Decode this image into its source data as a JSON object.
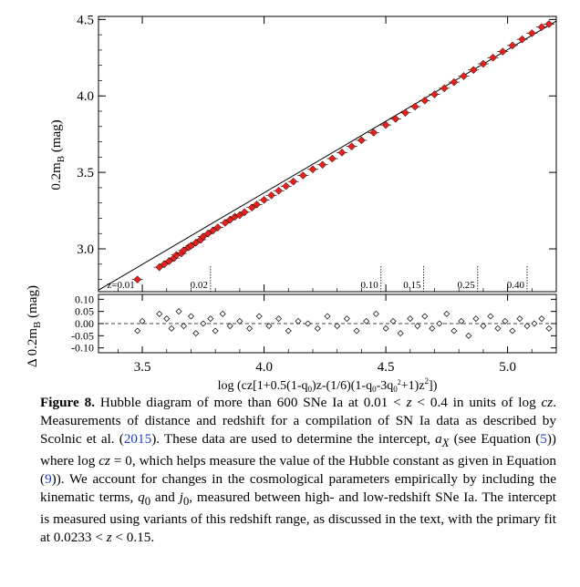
{
  "chart_data": [
    {
      "type": "scatter",
      "ylabel": "0.2m",
      "ylabel_sub": "B",
      "ylabel_unit": " (mag)",
      "xlim": [
        3.32,
        5.2
      ],
      "ylim": [
        2.72,
        4.52
      ],
      "yticks": [
        3.0,
        3.5,
        4.0,
        4.5
      ],
      "yticklabels": [
        "3.0",
        "3.5",
        "4.0",
        "4.5"
      ],
      "fit_line": {
        "x": [
          3.32,
          5.2
        ],
        "y": [
          2.73,
          4.49
        ]
      },
      "redshift_markers": [
        {
          "label": "z=0.01",
          "x": 3.48
        },
        {
          "label": "0.02",
          "x": 3.78
        },
        {
          "label": "0.10",
          "x": 4.48
        },
        {
          "label": "0.15",
          "x": 4.655
        },
        {
          "label": "0.25",
          "x": 4.877
        },
        {
          "label": "0.40",
          "x": 5.08
        }
      ],
      "marker_color": "#e8201c",
      "series": [
        {
          "points": [
            [
              3.48,
              2.8
            ],
            [
              3.57,
              2.88
            ],
            [
              3.59,
              2.9
            ],
            [
              3.61,
              2.92
            ],
            [
              3.63,
              2.94
            ],
            [
              3.64,
              2.96
            ],
            [
              3.66,
              2.97
            ],
            [
              3.67,
              2.99
            ],
            [
              3.69,
              3.01
            ],
            [
              3.7,
              3.02
            ],
            [
              3.72,
              3.04
            ],
            [
              3.74,
              3.06
            ],
            [
              3.75,
              3.08
            ],
            [
              3.77,
              3.1
            ],
            [
              3.79,
              3.12
            ],
            [
              3.81,
              3.14
            ],
            [
              3.84,
              3.17
            ],
            [
              3.86,
              3.19
            ],
            [
              3.88,
              3.21
            ],
            [
              3.9,
              3.22
            ],
            [
              3.92,
              3.24
            ],
            [
              3.95,
              3.27
            ],
            [
              3.97,
              3.29
            ],
            [
              4.0,
              3.32
            ],
            [
              4.03,
              3.35
            ],
            [
              4.06,
              3.38
            ],
            [
              4.09,
              3.41
            ],
            [
              4.12,
              3.44
            ],
            [
              4.16,
              3.48
            ],
            [
              4.2,
              3.52
            ],
            [
              4.24,
              3.55
            ],
            [
              4.28,
              3.59
            ],
            [
              4.32,
              3.63
            ],
            [
              4.36,
              3.67
            ],
            [
              4.4,
              3.71
            ],
            [
              4.45,
              3.76
            ],
            [
              4.5,
              3.81
            ],
            [
              4.54,
              3.85
            ],
            [
              4.58,
              3.89
            ],
            [
              4.62,
              3.93
            ],
            [
              4.66,
              3.97
            ],
            [
              4.7,
              4.01
            ],
            [
              4.74,
              4.05
            ],
            [
              4.78,
              4.09
            ],
            [
              4.82,
              4.13
            ],
            [
              4.86,
              4.17
            ],
            [
              4.9,
              4.21
            ],
            [
              4.94,
              4.25
            ],
            [
              4.98,
              4.29
            ],
            [
              5.02,
              4.33
            ],
            [
              5.06,
              4.37
            ],
            [
              5.1,
              4.41
            ],
            [
              5.14,
              4.45
            ],
            [
              5.17,
              4.47
            ]
          ]
        }
      ]
    },
    {
      "type": "scatter",
      "ylabel": "Δ 0.2m",
      "ylabel_sub": "B",
      "ylabel_unit": " (mag)",
      "xlabel": "log (cz[1+0.5(1-q",
      "xlabel_sub1": "0",
      "xlabel_mid": ")z-(1/6)(1-q",
      "xlabel_sub2": "0",
      "xlabel_mid2": "-3q",
      "xlabel_sub3": "0",
      "xlabel_sup3": "2",
      "xlabel_end": "+1)z",
      "xlabel_sup_end": "2",
      "xlabel_close": "])",
      "xlim": [
        3.32,
        5.2
      ],
      "ylim": [
        -0.12,
        0.12
      ],
      "xticks": [
        3.5,
        4.0,
        4.5,
        5.0
      ],
      "xticklabels": [
        "3.5",
        "4.0",
        "4.5",
        "5.0"
      ],
      "yticks": [
        -0.1,
        -0.05,
        0.0,
        0.05,
        0.1
      ],
      "yticklabels": [
        "-0.10",
        "-0.05",
        "0.00",
        "0.05",
        "0.10"
      ],
      "zero_line": true,
      "series": [
        {
          "points": [
            [
              3.48,
              -0.03
            ],
            [
              3.5,
              0.01
            ],
            [
              3.57,
              0.04
            ],
            [
              3.6,
              0.02
            ],
            [
              3.62,
              -0.02
            ],
            [
              3.65,
              0.05
            ],
            [
              3.67,
              -0.01
            ],
            [
              3.7,
              0.03
            ],
            [
              3.72,
              -0.04
            ],
            [
              3.75,
              0.0
            ],
            [
              3.78,
              0.02
            ],
            [
              3.8,
              -0.03
            ],
            [
              3.83,
              0.04
            ],
            [
              3.86,
              -0.01
            ],
            [
              3.9,
              0.01
            ],
            [
              3.94,
              -0.02
            ],
            [
              3.98,
              0.03
            ],
            [
              4.02,
              -0.01
            ],
            [
              4.06,
              0.02
            ],
            [
              4.1,
              -0.03
            ],
            [
              4.14,
              0.01
            ],
            [
              4.18,
              0.0
            ],
            [
              4.22,
              -0.02
            ],
            [
              4.26,
              0.03
            ],
            [
              4.3,
              -0.01
            ],
            [
              4.34,
              0.02
            ],
            [
              4.38,
              -0.03
            ],
            [
              4.42,
              0.01
            ],
            [
              4.46,
              0.04
            ],
            [
              4.5,
              -0.02
            ],
            [
              4.53,
              0.01
            ],
            [
              4.56,
              -0.04
            ],
            [
              4.6,
              0.02
            ],
            [
              4.63,
              -0.01
            ],
            [
              4.66,
              0.03
            ],
            [
              4.69,
              -0.02
            ],
            [
              4.72,
              0.0
            ],
            [
              4.75,
              0.04
            ],
            [
              4.78,
              -0.03
            ],
            [
              4.81,
              0.01
            ],
            [
              4.84,
              -0.05
            ],
            [
              4.87,
              0.02
            ],
            [
              4.9,
              -0.01
            ],
            [
              4.93,
              0.03
            ],
            [
              4.96,
              -0.02
            ],
            [
              4.99,
              0.01
            ],
            [
              5.02,
              -0.03
            ],
            [
              5.05,
              0.02
            ],
            [
              5.08,
              -0.01
            ],
            [
              5.11,
              0.0
            ],
            [
              5.14,
              0.02
            ],
            [
              5.17,
              -0.02
            ]
          ]
        }
      ]
    }
  ],
  "caption": {
    "label": "Figure 8.",
    "text1": " Hubble diagram of more than 600 SNe Ia at 0.01 < ",
    "z1": "z",
    "text2": " < 0.4 in units of log ",
    "cz1": "cz",
    "text3": ". Measurements of distance and redshift for a compilation of SN Ia data as described by Scolnic et al. (",
    "ref1": "2015",
    "text4": "). These data are used to determine the intercept, ",
    "ax": "a",
    "ax_sub": "X",
    "text5": " (see Equation (",
    "ref2": "5",
    "text6": ")) where log ",
    "cz2": "cz",
    "text7": " = 0, which helps measure the value of the Hubble constant as given in Equation (",
    "ref3": "9",
    "text8": ")). We account for changes in the cosmological parameters empirically by including the kinematic terms, ",
    "q0": "q",
    "q0_sub": "0",
    "text9": " and ",
    "j0": "j",
    "j0_sub": "0",
    "text10": ", measured between high- and low-redshift SNe Ia. The intercept is measured using variants of this redshift range, as discussed in the text, with the primary fit at 0.0233 < ",
    "z2": "z",
    "text11": " < 0.15."
  }
}
